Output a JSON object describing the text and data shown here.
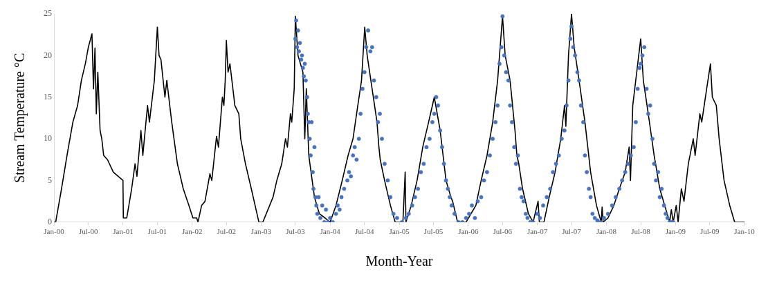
{
  "chart_data": {
    "type": "line",
    "xlabel": "Month-Year",
    "ylabel": "Stream Temperature °C",
    "xlim": [
      "2000-01-01",
      "2010-01-01"
    ],
    "ylim": [
      0,
      25
    ],
    "yticks": [
      0,
      5,
      10,
      15,
      20,
      25
    ],
    "xticks": [
      {
        "value": "2000-01-01",
        "label": "Jan-00"
      },
      {
        "value": "2000-07-01",
        "label": "Jul-00"
      },
      {
        "value": "2001-01-01",
        "label": "Jan-01"
      },
      {
        "value": "2001-07-01",
        "label": "Jul-01"
      },
      {
        "value": "2002-01-01",
        "label": "Jan-02"
      },
      {
        "value": "2002-07-01",
        "label": "Jul-02"
      },
      {
        "value": "2003-01-01",
        "label": "Jan-03"
      },
      {
        "value": "2003-07-01",
        "label": "Jul-03"
      },
      {
        "value": "2004-01-01",
        "label": "Jan-04"
      },
      {
        "value": "2004-07-01",
        "label": "Jul-04"
      },
      {
        "value": "2005-01-01",
        "label": "Jan-05"
      },
      {
        "value": "2005-07-01",
        "label": "Jul-05"
      },
      {
        "value": "2006-01-01",
        "label": "Jan-06"
      },
      {
        "value": "2006-07-01",
        "label": "Jul-06"
      },
      {
        "value": "2007-01-01",
        "label": "Jan-07"
      },
      {
        "value": "2007-07-01",
        "label": "Jul-07"
      },
      {
        "value": "2008-01-01",
        "label": "Jan-08"
      },
      {
        "value": "2008-07-01",
        "label": "Jul-08"
      },
      {
        "value": "2009-01-01",
        "label": "Jan-09"
      },
      {
        "value": "2009-07-01",
        "label": "Jul-09"
      },
      {
        "value": "2010-01-01",
        "label": "Jan-10"
      }
    ],
    "grid": false,
    "legend": false,
    "series": [
      {
        "color": "#000000",
        "marker": "none",
        "line_style": "solid",
        "x": [
          "2000-01-01",
          "2000-01-10",
          "2000-02-10",
          "2000-03-10",
          "2000-04-10",
          "2000-05-05",
          "2000-05-25",
          "2000-06-15",
          "2000-07-01",
          "2000-07-20",
          "2000-07-28",
          "2000-08-05",
          "2000-08-12",
          "2000-08-20",
          "2000-09-01",
          "2000-09-10",
          "2000-09-20",
          "2000-10-10",
          "2000-11-10",
          "2000-12-31",
          "2001-01-02",
          "2001-01-20",
          "2001-02-15",
          "2001-03-05",
          "2001-03-15",
          "2001-04-05",
          "2001-04-15",
          "2001-05-10",
          "2001-05-20",
          "2001-06-15",
          "2001-07-01",
          "2001-07-10",
          "2001-07-20",
          "2001-08-10",
          "2001-08-20",
          "2001-09-15",
          "2001-10-15",
          "2001-11-15",
          "2001-12-15",
          "2002-01-05",
          "2002-01-25",
          "2002-02-01",
          "2002-02-20",
          "2002-03-10",
          "2002-04-05",
          "2002-04-15",
          "2002-05-10",
          "2002-05-20",
          "2002-06-10",
          "2002-06-18",
          "2002-06-25",
          "2002-07-01",
          "2002-07-10",
          "2002-07-20",
          "2002-08-15",
          "2002-09-05",
          "2002-09-15",
          "2002-10-10",
          "2002-11-10",
          "2002-12-05",
          "2002-12-20",
          "2003-01-10",
          "2003-03-05",
          "2003-03-25",
          "2003-04-20",
          "2003-05-10",
          "2003-05-20",
          "2003-06-05",
          "2003-06-12",
          "2003-06-25",
          "2003-07-01",
          "2003-07-15",
          "2003-08-10",
          "2003-08-20",
          "2003-08-28",
          "2003-09-10",
          "2003-10-10",
          "2003-11-05",
          "2003-12-05",
          "2004-01-01",
          "2004-02-01",
          "2004-03-05",
          "2004-04-05",
          "2004-05-01",
          "2004-05-20",
          "2004-06-15",
          "2004-07-02",
          "2004-07-15",
          "2004-08-10",
          "2004-09-05",
          "2004-09-15",
          "2004-09-22",
          "2004-10-15",
          "2004-11-15",
          "2004-12-10",
          "2005-01-20",
          "2005-02-01",
          "2005-02-05",
          "2005-03-05",
          "2005-04-05",
          "2005-05-05",
          "2005-06-05",
          "2005-07-05",
          "2005-08-05",
          "2005-09-05",
          "2005-10-01",
          "2005-10-10",
          "2005-11-05",
          "2005-12-20",
          "2006-01-15",
          "2006-02-10",
          "2006-03-10",
          "2006-04-10",
          "2006-05-10",
          "2006-06-05",
          "2006-07-01",
          "2006-07-15",
          "2006-08-10",
          "2006-09-05",
          "2006-09-15",
          "2006-09-25",
          "2006-10-15",
          "2006-11-15",
          "2006-12-10",
          "2007-01-05",
          "2007-01-12",
          "2007-02-05",
          "2007-03-05",
          "2007-04-05",
          "2007-05-05",
          "2007-05-25",
          "2007-06-01",
          "2007-06-15",
          "2007-07-01",
          "2007-07-15",
          "2007-08-10",
          "2007-09-10",
          "2007-10-10",
          "2007-11-10",
          "2007-12-05",
          "2007-12-10",
          "2007-12-15",
          "2008-01-10",
          "2008-02-10",
          "2008-03-10",
          "2008-04-10",
          "2008-05-01",
          "2008-05-08",
          "2008-05-20",
          "2008-06-10",
          "2008-07-01",
          "2008-07-15",
          "2008-08-10",
          "2008-09-10",
          "2008-10-10",
          "2008-11-05",
          "2008-12-01",
          "2008-12-10",
          "2008-12-20",
          "2009-01-05",
          "2009-01-15",
          "2009-02-01",
          "2009-02-15",
          "2009-03-10",
          "2009-04-05",
          "2009-04-15",
          "2009-05-10",
          "2009-05-20",
          "2009-06-15",
          "2009-07-05",
          "2009-07-15",
          "2009-08-05",
          "2009-08-20",
          "2009-09-15",
          "2009-10-15",
          "2009-11-10",
          "2009-12-05",
          "2010-01-01"
        ],
        "values": [
          0,
          0,
          4,
          8,
          12,
          14,
          17,
          19,
          21,
          22.6,
          16,
          20.9,
          13,
          18,
          11,
          10,
          8,
          7.5,
          6,
          5,
          0.5,
          0.5,
          4,
          7,
          5.5,
          11,
          8,
          14,
          12,
          17,
          23.4,
          20,
          19.5,
          15,
          17,
          12,
          7,
          4,
          2,
          0.5,
          0.5,
          0,
          2,
          2.5,
          5.8,
          5,
          10.3,
          9,
          15,
          14,
          17,
          21.8,
          18,
          19,
          14,
          13,
          10,
          7,
          4,
          1.5,
          0,
          0,
          3,
          5,
          7,
          10,
          9,
          13,
          12,
          16,
          24.7,
          20,
          18,
          10,
          16,
          8,
          3,
          1,
          0.5,
          0,
          2,
          5,
          8,
          10,
          13,
          17,
          23.4,
          20,
          16,
          12,
          9,
          7.5,
          5,
          2,
          0,
          0,
          6,
          0,
          2,
          5,
          9,
          12,
          15,
          11,
          5,
          3,
          2.5,
          0,
          0,
          1,
          2,
          5,
          8,
          12,
          17,
          24.7,
          20,
          17,
          11,
          8,
          7,
          4,
          1,
          0,
          2.5,
          0,
          0,
          3,
          6,
          10,
          14,
          11.5,
          20,
          25,
          21,
          17,
          12,
          6,
          2,
          0,
          1.8,
          0,
          0.5,
          2,
          4,
          6,
          9,
          5,
          14,
          18,
          22,
          17,
          13,
          8,
          4,
          2,
          0,
          1.5,
          0,
          2,
          0,
          4,
          2.5,
          7,
          10,
          8,
          13,
          12,
          16,
          19,
          15,
          14,
          10,
          5,
          2,
          0,
          0,
          0
        ]
      },
      {
        "type": "scatter",
        "color": "#4472c4",
        "marker": "circle",
        "x": [
          "2003-07-01",
          "2003-07-05",
          "2003-07-10",
          "2003-07-15",
          "2003-07-20",
          "2003-07-25",
          "2003-08-01",
          "2003-08-05",
          "2003-08-10",
          "2003-08-15",
          "2003-08-20",
          "2003-08-25",
          "2003-09-01",
          "2003-09-05",
          "2003-09-10",
          "2003-09-15",
          "2003-09-20",
          "2003-09-25",
          "2003-10-01",
          "2003-10-05",
          "2003-10-10",
          "2003-10-15",
          "2003-10-20",
          "2003-10-25",
          "2003-11-01",
          "2003-11-10",
          "2003-11-20",
          "2003-12-01",
          "2003-12-10",
          "2003-12-20",
          "2004-01-01",
          "2004-01-15",
          "2004-02-01",
          "2004-02-10",
          "2004-02-20",
          "2004-03-01",
          "2004-03-15",
          "2004-04-01",
          "2004-04-10",
          "2004-04-20",
          "2004-05-01",
          "2004-05-10",
          "2004-05-20",
          "2004-06-01",
          "2004-06-10",
          "2004-06-20",
          "2004-07-01",
          "2004-07-10",
          "2004-07-20",
          "2004-08-01",
          "2004-08-10",
          "2004-08-20",
          "2004-09-01",
          "2004-09-10",
          "2004-09-20",
          "2004-10-01",
          "2004-10-15",
          "2004-11-01",
          "2004-11-15",
          "2004-12-01",
          "2004-12-20",
          "2005-01-15",
          "2005-02-05",
          "2005-02-20",
          "2005-03-10",
          "2005-03-25",
          "2005-04-10",
          "2005-04-25",
          "2005-05-10",
          "2005-05-25",
          "2005-06-10",
          "2005-06-25",
          "2005-07-05",
          "2005-07-15",
          "2005-07-25",
          "2005-08-05",
          "2005-08-15",
          "2005-08-25",
          "2005-09-05",
          "2005-09-15",
          "2005-09-25",
          "2005-10-05",
          "2005-10-20",
          "2005-11-10",
          "2005-12-01",
          "2005-12-20",
          "2006-01-05",
          "2006-01-20",
          "2006-02-05",
          "2006-02-20",
          "2006-03-10",
          "2006-03-25",
          "2006-04-10",
          "2006-04-25",
          "2006-05-10",
          "2006-05-25",
          "2006-06-05",
          "2006-06-15",
          "2006-06-25",
          "2006-07-01",
          "2006-07-10",
          "2006-07-20",
          "2006-08-01",
          "2006-08-10",
          "2006-08-20",
          "2006-09-01",
          "2006-09-10",
          "2006-09-20",
          "2006-10-01",
          "2006-10-10",
          "2006-10-20",
          "2006-11-01",
          "2006-11-10",
          "2006-11-25",
          "2006-12-10",
          "2007-01-01",
          "2007-01-15",
          "2007-02-01",
          "2007-02-20",
          "2007-03-10",
          "2007-03-25",
          "2007-04-10",
          "2007-04-25",
          "2007-05-10",
          "2007-05-25",
          "2007-06-05",
          "2007-06-15",
          "2007-06-25",
          "2007-07-01",
          "2007-07-10",
          "2007-07-20",
          "2007-08-01",
          "2007-08-10",
          "2007-08-20",
          "2007-09-01",
          "2007-09-10",
          "2007-09-20",
          "2007-10-01",
          "2007-10-10",
          "2007-10-20",
          "2007-11-01",
          "2007-11-15",
          "2007-12-01",
          "2007-12-20",
          "2008-01-10",
          "2008-02-01",
          "2008-02-20",
          "2008-03-10",
          "2008-03-25",
          "2008-04-10",
          "2008-04-25",
          "2008-05-10",
          "2008-05-25",
          "2008-06-05",
          "2008-06-15",
          "2008-06-25",
          "2008-07-01",
          "2008-07-10",
          "2008-07-20",
          "2008-08-01",
          "2008-08-10",
          "2008-08-20",
          "2008-09-01",
          "2008-09-10",
          "2008-09-20",
          "2008-10-01",
          "2008-10-10",
          "2008-10-20",
          "2008-11-01",
          "2008-11-10",
          "2008-11-20",
          "2008-12-01",
          "2008-12-10",
          "2008-12-20"
        ],
        "values": [
          22,
          24.2,
          21,
          23,
          20.5,
          21.5,
          19.5,
          20,
          18.5,
          17.5,
          19,
          17,
          15,
          13,
          12,
          10,
          8,
          12,
          6,
          4,
          9,
          3,
          2,
          1,
          3,
          0.5,
          2,
          0,
          1.5,
          0,
          0.5,
          0,
          1,
          2,
          1.5,
          3,
          4,
          5,
          6,
          5.5,
          8,
          9,
          7.5,
          10,
          13,
          16,
          18,
          21,
          23,
          20.5,
          21,
          17,
          15,
          12,
          13,
          10,
          7,
          5,
          3,
          1,
          0.5,
          0,
          0.5,
          1,
          2,
          3,
          4,
          6,
          7,
          9,
          10,
          12,
          13,
          15,
          14,
          11,
          9,
          7,
          5,
          4,
          3,
          2,
          1,
          0,
          0,
          0.5,
          1,
          2,
          0.5,
          2.5,
          3,
          5,
          6,
          8,
          10,
          12,
          14,
          19,
          21,
          24.7,
          20,
          18,
          17,
          14,
          12,
          9,
          7,
          8,
          4,
          3,
          2.5,
          1,
          0.5,
          0,
          0,
          1,
          0.5,
          2,
          3,
          4,
          6,
          7,
          8,
          10,
          11,
          14,
          17,
          22,
          23.5,
          21,
          20,
          18,
          17,
          14,
          12,
          8,
          6,
          4,
          3,
          1,
          0.5,
          0.2,
          0,
          0.5,
          1,
          2,
          3,
          4,
          5,
          6,
          7,
          8,
          9,
          12,
          16,
          18.5,
          19,
          20,
          21,
          16,
          13,
          14,
          10,
          7,
          5,
          6,
          3,
          4,
          2,
          1,
          0.5,
          0,
          0,
          0
        ]
      }
    ]
  }
}
